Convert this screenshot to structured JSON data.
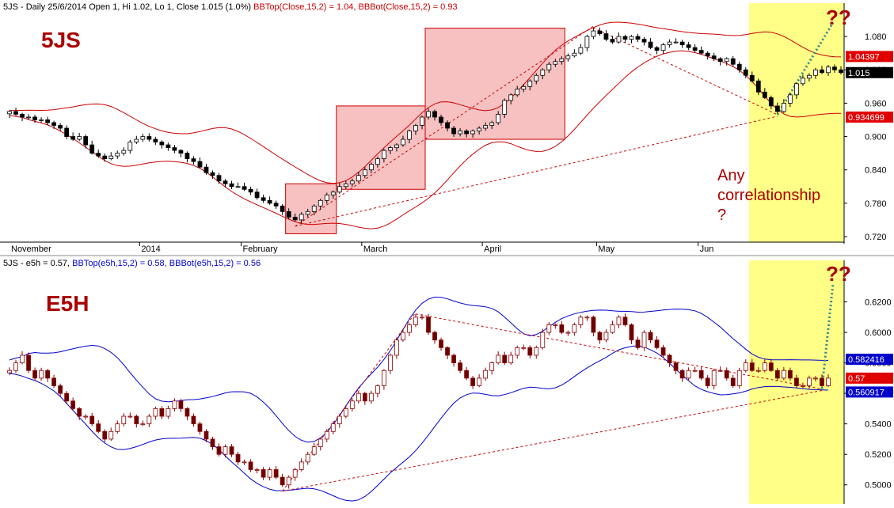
{
  "colors": {
    "up": "#ffffff",
    "down": "#000000",
    "bb_top_5js": "#cc0000",
    "bb_bot_5js": "#cc0000",
    "e5h_series": "#cc0000",
    "bb_top_e5h": "#0000cc",
    "bb_bot_e5h": "#0000cc",
    "highlight": "#ffff88",
    "box_fill": "#f4a6a6",
    "trend": "#cc0000",
    "dotted_projection": "#2e8b8b",
    "annotation_red": "#aa0000"
  },
  "chart_data": [
    {
      "type": "candlestick",
      "panel": "top",
      "header": {
        "symbol_line": "5JS - Daily 25/6/2014 Open 1, Hi 1.02, Lo 1, Close 1.015 (1.0%)",
        "bbtop_text": "BBTop(Close,15,2) = 1.04,",
        "bbbot_text": "BBBot(Close,15,2) = 0.93"
      },
      "big_label": "5JS",
      "annotation_text": [
        "Any",
        "correlationship",
        "?"
      ],
      "question_marks": "??",
      "x_labels": [
        "November",
        "2014",
        "February",
        "March",
        "April",
        "May",
        "Jun"
      ],
      "ylim": [
        0.71,
        1.12
      ],
      "y_ticks": [
        "1.080",
        "1.020",
        "0.960",
        "0.900",
        "0.840",
        "0.780",
        "0.720"
      ],
      "y_tick_values": [
        1.08,
        1.02,
        0.96,
        0.9,
        0.84,
        0.78,
        0.72
      ],
      "price_tags": [
        {
          "label": "1.04397",
          "value": 1.044,
          "style": "red"
        },
        {
          "label": "1.015",
          "value": 1.015,
          "style": "black"
        },
        {
          "label": "0.934699",
          "value": 0.935,
          "style": "red"
        }
      ],
      "closes": [
        0.945,
        0.94,
        0.935,
        0.935,
        0.93,
        0.93,
        0.925,
        0.92,
        0.915,
        0.9,
        0.895,
        0.9,
        0.885,
        0.87,
        0.865,
        0.86,
        0.865,
        0.87,
        0.875,
        0.89,
        0.895,
        0.9,
        0.895,
        0.89,
        0.885,
        0.88,
        0.875,
        0.87,
        0.86,
        0.855,
        0.845,
        0.835,
        0.83,
        0.82,
        0.815,
        0.81,
        0.81,
        0.805,
        0.8,
        0.79,
        0.785,
        0.78,
        0.775,
        0.765,
        0.755,
        0.75,
        0.76,
        0.765,
        0.775,
        0.785,
        0.795,
        0.8,
        0.81,
        0.815,
        0.82,
        0.83,
        0.84,
        0.85,
        0.86,
        0.875,
        0.88,
        0.885,
        0.895,
        0.91,
        0.92,
        0.935,
        0.945,
        0.935,
        0.925,
        0.915,
        0.905,
        0.91,
        0.905,
        0.91,
        0.915,
        0.92,
        0.925,
        0.94,
        0.965,
        0.975,
        0.985,
        0.99,
        1.0,
        1.01,
        1.02,
        1.03,
        1.035,
        1.04,
        1.045,
        1.05,
        1.06,
        1.08,
        1.09,
        1.085,
        1.075,
        1.07,
        1.08,
        1.075,
        1.08,
        1.075,
        1.07,
        1.06,
        1.055,
        1.065,
        1.07,
        1.07,
        1.065,
        1.06,
        1.055,
        1.05,
        1.045,
        1.04,
        1.035,
        1.04,
        1.03,
        1.02,
        1.01,
        1.0,
        0.98,
        0.97,
        0.955,
        0.945,
        0.96,
        0.975,
        0.995,
        1.005,
        1.01,
        1.02,
        1.015,
        1.025,
        1.02,
        1.015
      ],
      "box_zones": [
        {
          "from": 44,
          "to": 51,
          "low": 0.725,
          "high": 0.815
        },
        {
          "from": 52,
          "to": 65,
          "low": 0.805,
          "high": 0.955
        },
        {
          "from": 66,
          "to": 87,
          "low": 0.895,
          "high": 1.095
        }
      ],
      "highlight_from_index": 117,
      "grid": false
    },
    {
      "type": "candlestick",
      "panel": "bottom",
      "header": {
        "symbol_line": "5JS - e5h = 0.57,",
        "bbtop_text": "BBTop(e5h,15,2) = 0.58,",
        "bbbot_text": "BBBot(e5h,15,2) = 0.56"
      },
      "big_label": "E5H",
      "question_marks": "??",
      "ylim": [
        0.49,
        0.64
      ],
      "y_ticks": [
        "0.6200",
        "0.6000",
        "0.5800",
        "0.5600",
        "0.5400",
        "0.5200",
        "0.5000"
      ],
      "y_tick_values": [
        0.62,
        0.6,
        0.58,
        0.56,
        0.54,
        0.52,
        0.5
      ],
      "price_tags": [
        {
          "label": "0.582416",
          "value": 0.5824,
          "style": "blue"
        },
        {
          "label": "0.57",
          "value": 0.57,
          "style": "red"
        },
        {
          "label": "0.560917",
          "value": 0.5609,
          "style": "blue"
        }
      ],
      "closes": [
        0.575,
        0.58,
        0.585,
        0.575,
        0.57,
        0.575,
        0.57,
        0.565,
        0.56,
        0.555,
        0.55,
        0.545,
        0.545,
        0.54,
        0.535,
        0.53,
        0.535,
        0.54,
        0.545,
        0.545,
        0.54,
        0.54,
        0.545,
        0.55,
        0.545,
        0.55,
        0.555,
        0.55,
        0.545,
        0.54,
        0.535,
        0.53,
        0.525,
        0.52,
        0.525,
        0.52,
        0.515,
        0.515,
        0.51,
        0.51,
        0.505,
        0.51,
        0.505,
        0.5,
        0.505,
        0.51,
        0.515,
        0.52,
        0.525,
        0.53,
        0.535,
        0.54,
        0.545,
        0.55,
        0.555,
        0.56,
        0.555,
        0.56,
        0.565,
        0.575,
        0.585,
        0.595,
        0.6,
        0.605,
        0.61,
        0.61,
        0.6,
        0.595,
        0.59,
        0.585,
        0.58,
        0.575,
        0.57,
        0.565,
        0.57,
        0.575,
        0.58,
        0.585,
        0.58,
        0.585,
        0.59,
        0.59,
        0.585,
        0.59,
        0.6,
        0.605,
        0.605,
        0.6,
        0.6,
        0.605,
        0.61,
        0.61,
        0.6,
        0.595,
        0.6,
        0.605,
        0.61,
        0.605,
        0.595,
        0.59,
        0.6,
        0.595,
        0.59,
        0.585,
        0.58,
        0.575,
        0.57,
        0.575,
        0.575,
        0.57,
        0.565,
        0.575,
        0.575,
        0.57,
        0.565,
        0.575,
        0.58,
        0.575,
        0.575,
        0.58,
        0.575,
        0.57,
        0.575,
        0.57,
        0.565,
        0.565,
        0.57,
        0.57,
        0.565,
        0.57
      ],
      "highlight_from_index": 117,
      "grid": false
    }
  ]
}
